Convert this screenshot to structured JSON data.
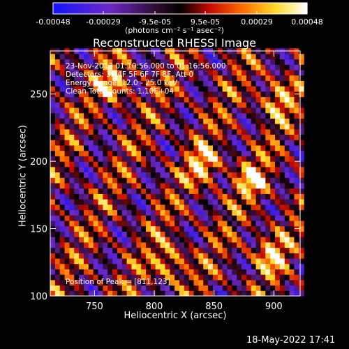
{
  "chart_data": {
    "type": "heatmap",
    "title": "Reconstructed RHESSI Image",
    "xlabel": "Heliocentric X (arcsec)",
    "ylabel": "Heliocentric Y (arcsec)",
    "xlim": [
      713,
      922
    ],
    "ylim": [
      100,
      282
    ],
    "x_ticks": [
      750,
      800,
      850,
      900
    ],
    "y_ticks": [
      100,
      150,
      200,
      250
    ],
    "colorbar": {
      "colormap": "blue-black-red-yellow-white",
      "range": [
        -0.00048,
        0.00048
      ],
      "ticks": [
        -0.00048,
        -0.00029,
        -9.5e-05,
        9.5e-05,
        0.00029,
        0.00048
      ],
      "tick_labels": [
        "-0.00048",
        "-0.00029",
        "-9.5e-05",
        "9.5e-05",
        "0.00029",
        "0.00048"
      ],
      "unit_label": "(photons cm⁻² s⁻¹ asec⁻²)"
    },
    "annotations": {
      "time_range": "23-Nov-2013 01:10:56.000 to 01:16:56.000",
      "detectors": "Detectors: 3F 4F 5F 6F 7F 8F, Att 0",
      "energy": "Energy Range: 12.0 - 25.0 keV",
      "clean": "Clean    Total counts: 1.10E+04",
      "peak": "Position of Peak = [811,123]"
    },
    "peak_position": [
      811,
      123
    ],
    "pattern": {
      "description_values": "diagonal interference fringes",
      "bright_sources": [
        [
          811,
          123
        ],
        [
          840,
          195
        ],
        [
          880,
          185
        ],
        [
          895,
          130
        ],
        [
          765,
          255
        ],
        [
          900,
          245
        ]
      ]
    }
  },
  "footer": {
    "date": "18-May-2022 17:41"
  }
}
